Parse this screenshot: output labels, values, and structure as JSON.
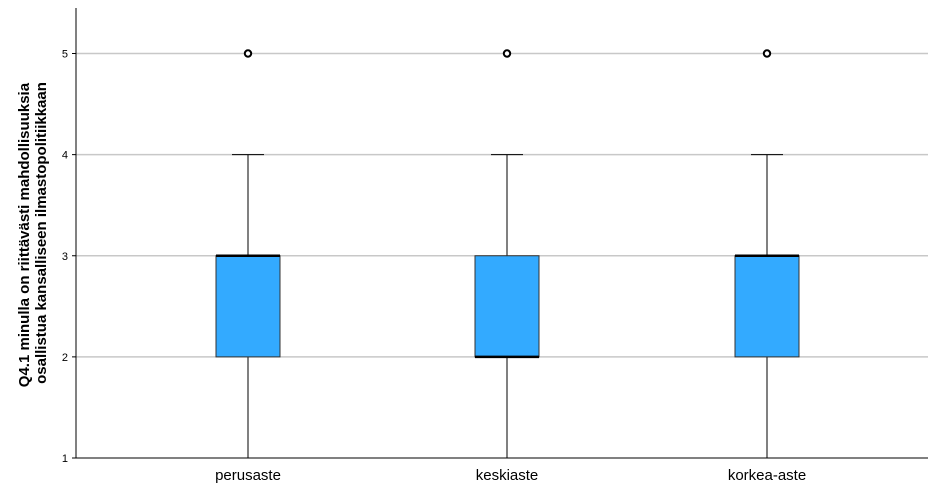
{
  "chart_data": {
    "type": "box",
    "categories": [
      "perusaste",
      "keskiaste",
      "korkea-aste"
    ],
    "ylabel_lines": [
      "Q4.1 minulla on riittävästi mahdollisuuksia",
      "osallistua kansalliseen ilmastopolitiikkaan"
    ],
    "ylim": [
      1,
      5.45
    ],
    "yticks": [
      "1",
      "2",
      "3",
      "4",
      "5"
    ],
    "grid": true,
    "box_color": "#33aaff",
    "boxes": [
      {
        "category": "perusaste",
        "whisker_low": 1,
        "q1": 2,
        "median": 3,
        "q3": 3,
        "whisker_high": 4,
        "outliers": [
          5
        ]
      },
      {
        "category": "keskiaste",
        "whisker_low": 1,
        "q1": 2,
        "median": 2,
        "q3": 3,
        "whisker_high": 4,
        "outliers": [
          5
        ]
      },
      {
        "category": "korkea-aste",
        "whisker_low": 1,
        "q1": 2,
        "median": 3,
        "q3": 3,
        "whisker_high": 4,
        "outliers": [
          5
        ]
      }
    ]
  }
}
